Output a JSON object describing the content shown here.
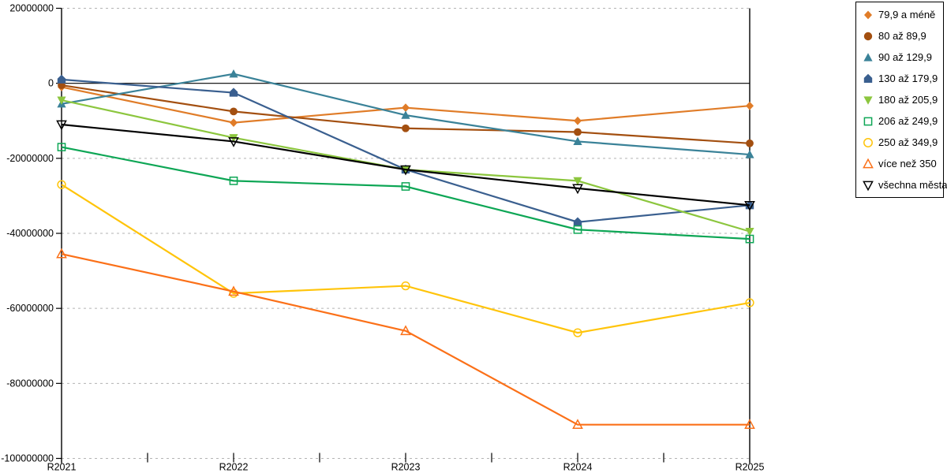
{
  "chart_data": {
    "type": "line",
    "title": "",
    "xlabel": "",
    "ylabel": "",
    "x_categories": [
      "R2021",
      "R2022",
      "R2023",
      "R2024",
      "R2025"
    ],
    "y_axis": {
      "min": -100000000,
      "max": 20000000,
      "step": 20000000,
      "tick_labels": [
        "20000000",
        "0",
        "-20000000",
        "-40000000",
        "-60000000",
        "-80000000",
        "-100000000"
      ]
    },
    "grid": "horizontal-dashed-gray",
    "zero_line_color": "#000000",
    "legend_position": "top-right",
    "series": [
      {
        "name": "79,9 a méně",
        "color": "#E07C28",
        "marker": "diamond",
        "fill": "solid",
        "values": [
          -1000000,
          -10500000,
          -6500000,
          -10000000,
          -6000000
        ]
      },
      {
        "name": "80 až 89,9",
        "color": "#A34F10",
        "marker": "circle",
        "fill": "solid",
        "values": [
          -500000,
          -7500000,
          -12000000,
          -13000000,
          -16000000
        ]
      },
      {
        "name": "90 až 129,9",
        "color": "#3A8298",
        "marker": "triangle-up",
        "fill": "solid",
        "values": [
          -5500000,
          2500000,
          -8500000,
          -15500000,
          -19000000
        ]
      },
      {
        "name": "130 až 179,9",
        "color": "#3A5F8F",
        "marker": "pentagon",
        "fill": "solid",
        "values": [
          1000000,
          -2500000,
          -23000000,
          -37000000,
          -32500000
        ]
      },
      {
        "name": "180 až 205,9",
        "color": "#8CC63E",
        "marker": "triangle-down",
        "fill": "solid",
        "values": [
          -4500000,
          -14500000,
          -23000000,
          -26000000,
          -39500000
        ]
      },
      {
        "name": "206 až 249,9",
        "color": "#0DA655",
        "marker": "square",
        "fill": "hollow",
        "values": [
          -17000000,
          -26000000,
          -27500000,
          -39000000,
          -41500000
        ]
      },
      {
        "name": "250 až 349,9",
        "color": "#FFC40A",
        "marker": "circle",
        "fill": "hollow",
        "values": [
          -27000000,
          -56000000,
          -54000000,
          -66500000,
          -58500000
        ]
      },
      {
        "name": "více než 350",
        "color": "#FB7018",
        "marker": "triangle-up",
        "fill": "hollow",
        "values": [
          -45500000,
          -55500000,
          -66000000,
          -91000000,
          -91000000
        ]
      },
      {
        "name": "všechna města",
        "color": "#000000",
        "marker": "triangle-down",
        "fill": "hollow",
        "values": [
          -11000000,
          -15500000,
          -23000000,
          -28000000,
          -32500000
        ]
      }
    ]
  }
}
